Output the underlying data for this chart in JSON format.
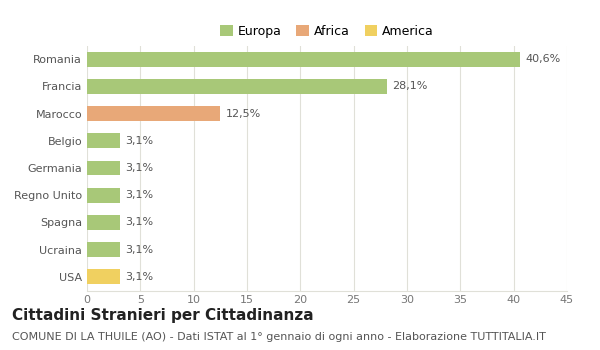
{
  "categories": [
    "Romania",
    "Francia",
    "Marocco",
    "Belgio",
    "Germania",
    "Regno Unito",
    "Spagna",
    "Ucraina",
    "USA"
  ],
  "values": [
    40.6,
    28.1,
    12.5,
    3.1,
    3.1,
    3.1,
    3.1,
    3.1,
    3.1
  ],
  "labels": [
    "40,6%",
    "28,1%",
    "12,5%",
    "3,1%",
    "3,1%",
    "3,1%",
    "3,1%",
    "3,1%",
    "3,1%"
  ],
  "bar_colors": [
    "#a8c878",
    "#a8c878",
    "#e8a878",
    "#a8c878",
    "#a8c878",
    "#a8c878",
    "#a8c878",
    "#a8c878",
    "#f0d060"
  ],
  "legend_labels": [
    "Europa",
    "Africa",
    "America"
  ],
  "legend_colors": [
    "#a8c878",
    "#e8a878",
    "#f0d060"
  ],
  "xlim": [
    0,
    45
  ],
  "xticks": [
    0,
    5,
    10,
    15,
    20,
    25,
    30,
    35,
    40,
    45
  ],
  "title": "Cittadini Stranieri per Cittadinanza",
  "subtitle": "COMUNE DI LA THUILE (AO) - Dati ISTAT al 1° gennaio di ogni anno - Elaborazione TUTTITALIA.IT",
  "background_color": "#ffffff",
  "grid_color": "#e0e0d8",
  "bar_height": 0.55,
  "title_fontsize": 11,
  "subtitle_fontsize": 8,
  "label_fontsize": 8,
  "tick_fontsize": 8,
  "legend_fontsize": 9
}
